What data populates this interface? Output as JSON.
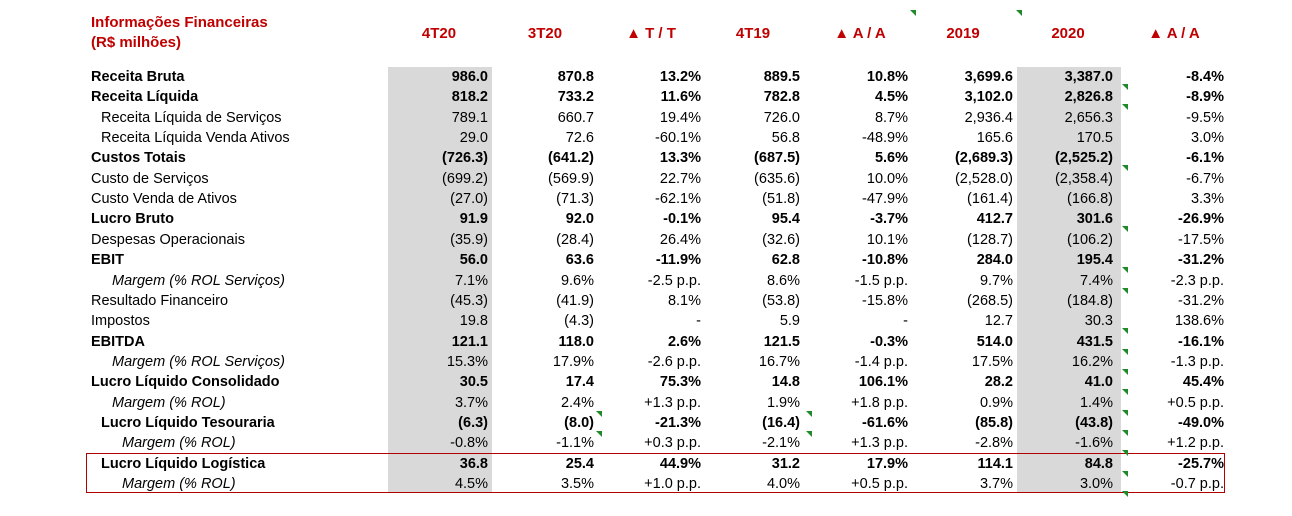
{
  "title_lines": [
    "Informações Financeiras",
    "(R$ milhões)"
  ],
  "headers": [
    "4T20",
    "3T20",
    "▲ T / T",
    "4T19",
    "▲ A / A",
    "2019",
    "2020",
    "▲ A / A"
  ],
  "rows": [
    {
      "label": "Receita Bruta",
      "style": "bold",
      "indent": 0,
      "values": [
        "986.0",
        "870.8",
        "13.2%",
        "889.5",
        "10.8%",
        "3,699.6",
        "3,387.0",
        "-8.4%"
      ]
    },
    {
      "label": "Receita Líquida",
      "style": "bold",
      "indent": 0,
      "values": [
        "818.2",
        "733.2",
        "11.6%",
        "782.8",
        "4.5%",
        "3,102.0",
        "2,826.8",
        "-8.9%"
      ]
    },
    {
      "label": "Receita Líquida de Serviços",
      "style": "normal",
      "indent": 1,
      "values": [
        "789.1",
        "660.7",
        "19.4%",
        "726.0",
        "8.7%",
        "2,936.4",
        "2,656.3",
        "-9.5%"
      ]
    },
    {
      "label": "Receita Líquida Venda Ativos",
      "style": "normal",
      "indent": 1,
      "values": [
        "29.0",
        "72.6",
        "-60.1%",
        "56.8",
        "-48.9%",
        "165.6",
        "170.5",
        "3.0%"
      ]
    },
    {
      "label": "Custos Totais",
      "style": "bold",
      "indent": 0,
      "values": [
        "(726.3)",
        "(641.2)",
        "13.3%",
        "(687.5)",
        "5.6%",
        "(2,689.3)",
        "(2,525.2)",
        "-6.1%"
      ]
    },
    {
      "label": "Custo de Serviços",
      "style": "normal",
      "indent": 0,
      "values": [
        "(699.2)",
        "(569.9)",
        "22.7%",
        "(635.6)",
        "10.0%",
        "(2,528.0)",
        "(2,358.4)",
        "-6.7%"
      ]
    },
    {
      "label": "Custo Venda de Ativos",
      "style": "normal",
      "indent": 0,
      "values": [
        "(27.0)",
        "(71.3)",
        "-62.1%",
        "(51.8)",
        "-47.9%",
        "(161.4)",
        "(166.8)",
        "3.3%"
      ]
    },
    {
      "label": "Lucro Bruto",
      "style": "bold",
      "indent": 0,
      "values": [
        "91.9",
        "92.0",
        "-0.1%",
        "95.4",
        "-3.7%",
        "412.7",
        "301.6",
        "-26.9%"
      ]
    },
    {
      "label": "Despesas Operacionais",
      "style": "normal",
      "indent": 0,
      "values": [
        "(35.9)",
        "(28.4)",
        "26.4%",
        "(32.6)",
        "10.1%",
        "(128.7)",
        "(106.2)",
        "-17.5%"
      ]
    },
    {
      "label": "EBIT",
      "style": "bold",
      "indent": 0,
      "values": [
        "56.0",
        "63.6",
        "-11.9%",
        "62.8",
        "-10.8%",
        "284.0",
        "195.4",
        "-31.2%"
      ]
    },
    {
      "label": "Margem (% ROL Serviços)",
      "style": "italic",
      "indent": 2,
      "values": [
        "7.1%",
        "9.6%",
        "-2.5 p.p.",
        "8.6%",
        "-1.5 p.p.",
        "9.7%",
        "7.4%",
        "-2.3 p.p."
      ]
    },
    {
      "label": "Resultado Financeiro",
      "style": "normal",
      "indent": 0,
      "values": [
        "(45.3)",
        "(41.9)",
        "8.1%",
        "(53.8)",
        "-15.8%",
        "(268.5)",
        "(184.8)",
        "-31.2%"
      ]
    },
    {
      "label": "Impostos",
      "style": "normal",
      "indent": 0,
      "values": [
        "19.8",
        "(4.3)",
        "-",
        "5.9",
        "-",
        "12.7",
        "30.3",
        "138.6%"
      ]
    },
    {
      "label": "EBITDA",
      "style": "bold",
      "indent": 0,
      "values": [
        "121.1",
        "118.0",
        "2.6%",
        "121.5",
        "-0.3%",
        "514.0",
        "431.5",
        "-16.1%"
      ]
    },
    {
      "label": "Margem (% ROL Serviços)",
      "style": "italic",
      "indent": 2,
      "values": [
        "15.3%",
        "17.9%",
        "-2.6 p.p.",
        "16.7%",
        "-1.4 p.p.",
        "17.5%",
        "16.2%",
        "-1.3 p.p."
      ]
    },
    {
      "label": "Lucro Líquido Consolidado",
      "style": "bold",
      "indent": 0,
      "values": [
        "30.5",
        "17.4",
        "75.3%",
        "14.8",
        "106.1%",
        "28.2",
        "41.0",
        "45.4%"
      ]
    },
    {
      "label": "Margem (% ROL)",
      "style": "italic",
      "indent": 2,
      "values": [
        "3.7%",
        "2.4%",
        "+1.3 p.p.",
        "1.9%",
        "+1.8 p.p.",
        "0.9%",
        "1.4%",
        "+0.5 p.p."
      ]
    },
    {
      "label": "Lucro Líquido Tesouraria",
      "style": "bold",
      "indent": 1,
      "values": [
        "(6.3)",
        "(8.0)",
        "-21.3%",
        "(16.4)",
        "-61.6%",
        "(85.8)",
        "(43.8)",
        "-49.0%"
      ]
    },
    {
      "label": "Margem (% ROL)",
      "style": "italic",
      "indent": 3,
      "values": [
        "-0.8%",
        "-1.1%",
        "+0.3 p.p.",
        "-2.1%",
        "+1.3 p.p.",
        "-2.8%",
        "-1.6%",
        "+1.2 p.p."
      ]
    },
    {
      "label": "Lucro Líquido Logística",
      "style": "bold",
      "indent": 1,
      "values": [
        "36.8",
        "25.4",
        "44.9%",
        "31.2",
        "17.9%",
        "114.1",
        "84.8",
        "-25.7%"
      ]
    },
    {
      "label": "Margem (% ROL)",
      "style": "italic",
      "indent": 3,
      "values": [
        "4.5%",
        "3.5%",
        "+1.0 p.p.",
        "4.0%",
        "+0.5 p.p.",
        "3.7%",
        "3.0%",
        "-0.7 p.p."
      ]
    }
  ],
  "colors": {
    "header_red": "#c00000",
    "shade_gray": "#d9d9d9",
    "box_border": "#b00000",
    "tick_green": "#1f8a2a"
  }
}
